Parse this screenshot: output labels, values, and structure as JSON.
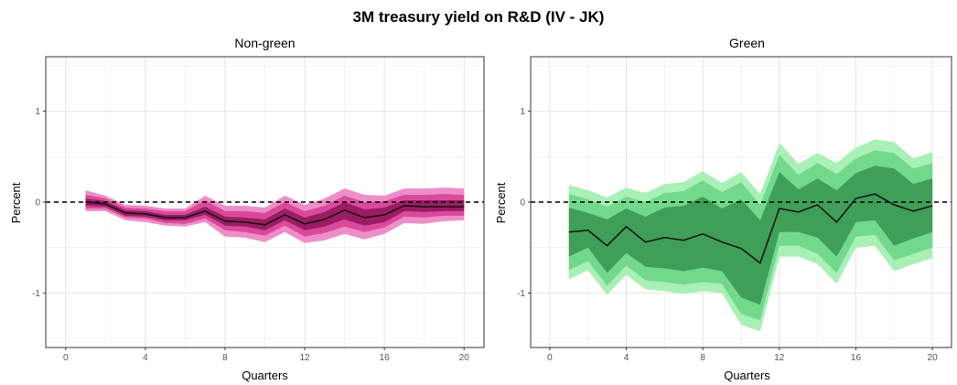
{
  "chart_data": {
    "type": "area",
    "title": "3M treasury yield on R&D (IV - JK)",
    "grid": true,
    "panels": [
      {
        "title": "Non-green",
        "xlabel": "Quarters",
        "ylabel": "Percent",
        "xlim": [
          -1,
          21
        ],
        "ylim": [
          -1.6,
          1.6
        ],
        "xticks": [
          0,
          4,
          8,
          12,
          16,
          20
        ],
        "yticks": [
          -1,
          0,
          1
        ],
        "colors": {
          "outer": "#ee8ec8",
          "mid": "#d94a9c",
          "inner": "#9b1c63",
          "line": "#111111"
        },
        "x": [
          1,
          2,
          3,
          4,
          5,
          6,
          7,
          8,
          9,
          10,
          11,
          12,
          13,
          14,
          15,
          16,
          17,
          18,
          19,
          20
        ],
        "median": [
          0.0,
          -0.02,
          -0.12,
          -0.13,
          -0.17,
          -0.17,
          -0.1,
          -0.21,
          -0.22,
          -0.25,
          -0.14,
          -0.24,
          -0.19,
          -0.09,
          -0.17,
          -0.14,
          -0.04,
          -0.05,
          -0.05,
          -0.05
        ],
        "bands": {
          "outer_lo": [
            -0.1,
            -0.1,
            -0.2,
            -0.22,
            -0.26,
            -0.27,
            -0.22,
            -0.38,
            -0.39,
            -0.44,
            -0.33,
            -0.45,
            -0.42,
            -0.35,
            -0.41,
            -0.35,
            -0.23,
            -0.24,
            -0.21,
            -0.2
          ],
          "outer_hi": [
            0.13,
            0.07,
            -0.03,
            -0.04,
            -0.07,
            -0.07,
            0.07,
            -0.04,
            -0.04,
            -0.06,
            0.07,
            -0.03,
            0.04,
            0.15,
            0.08,
            0.07,
            0.15,
            0.15,
            0.16,
            0.15
          ],
          "mid_lo": [
            -0.07,
            -0.07,
            -0.17,
            -0.18,
            -0.23,
            -0.24,
            -0.18,
            -0.31,
            -0.33,
            -0.37,
            -0.26,
            -0.38,
            -0.34,
            -0.27,
            -0.33,
            -0.28,
            -0.16,
            -0.17,
            -0.15,
            -0.15
          ],
          "mid_hi": [
            0.08,
            0.04,
            -0.06,
            -0.07,
            -0.1,
            -0.1,
            0.02,
            -0.1,
            -0.1,
            -0.12,
            0.0,
            -0.1,
            -0.04,
            0.07,
            0.0,
            0.01,
            0.08,
            0.08,
            0.09,
            0.08
          ],
          "inner_lo": [
            -0.04,
            -0.05,
            -0.15,
            -0.16,
            -0.2,
            -0.2,
            -0.14,
            -0.26,
            -0.27,
            -0.31,
            -0.2,
            -0.31,
            -0.27,
            -0.19,
            -0.26,
            -0.22,
            -0.1,
            -0.11,
            -0.1,
            -0.1
          ],
          "inner_hi": [
            0.04,
            0.01,
            -0.09,
            -0.1,
            -0.14,
            -0.14,
            -0.05,
            -0.16,
            -0.17,
            -0.19,
            -0.07,
            -0.17,
            -0.11,
            0.0,
            -0.08,
            -0.06,
            0.02,
            0.02,
            0.02,
            0.02
          ]
        }
      },
      {
        "title": "Green",
        "xlabel": "Quarters",
        "ylabel": "Percent",
        "xlim": [
          -1,
          21
        ],
        "ylim": [
          -1.6,
          1.6
        ],
        "xticks": [
          0,
          4,
          8,
          12,
          16,
          20
        ],
        "yticks": [
          -1,
          0,
          1
        ],
        "colors": {
          "outer": "#a8f0b6",
          "mid": "#72d98c",
          "inner": "#3f9e58",
          "line": "#111111"
        },
        "x": [
          1,
          2,
          3,
          4,
          5,
          6,
          7,
          8,
          9,
          10,
          11,
          12,
          13,
          14,
          15,
          16,
          17,
          18,
          19,
          20
        ],
        "median": [
          -0.33,
          -0.31,
          -0.48,
          -0.27,
          -0.44,
          -0.39,
          -0.42,
          -0.35,
          -0.44,
          -0.51,
          -0.67,
          -0.07,
          -0.11,
          -0.03,
          -0.22,
          0.04,
          0.09,
          -0.03,
          -0.1,
          -0.04
        ],
        "bands": {
          "outer_lo": [
            -0.85,
            -0.75,
            -1.02,
            -0.8,
            -0.96,
            -0.98,
            -1.01,
            -0.98,
            -1.0,
            -1.35,
            -1.42,
            -0.6,
            -0.6,
            -0.68,
            -0.9,
            -0.5,
            -0.48,
            -0.76,
            -0.68,
            -0.62
          ],
          "outer_hi": [
            0.19,
            0.13,
            0.05,
            0.16,
            0.1,
            0.2,
            0.22,
            0.34,
            0.21,
            0.33,
            0.09,
            0.65,
            0.42,
            0.54,
            0.43,
            0.6,
            0.69,
            0.66,
            0.48,
            0.55
          ],
          "mid_lo": [
            -0.75,
            -0.65,
            -0.92,
            -0.7,
            -0.86,
            -0.88,
            -0.91,
            -0.88,
            -0.9,
            -1.23,
            -1.3,
            -0.48,
            -0.48,
            -0.57,
            -0.78,
            -0.38,
            -0.36,
            -0.64,
            -0.57,
            -0.5
          ],
          "mid_hi": [
            0.09,
            0.03,
            -0.05,
            0.06,
            0.0,
            0.1,
            0.12,
            0.24,
            0.11,
            0.22,
            -0.03,
            0.52,
            0.3,
            0.43,
            0.31,
            0.48,
            0.57,
            0.54,
            0.37,
            0.43
          ],
          "inner_lo": [
            -0.6,
            -0.5,
            -0.78,
            -0.56,
            -0.71,
            -0.73,
            -0.76,
            -0.72,
            -0.76,
            -1.05,
            -1.13,
            -0.33,
            -0.33,
            -0.39,
            -0.6,
            -0.22,
            -0.2,
            -0.48,
            -0.4,
            -0.33
          ],
          "inner_hi": [
            -0.06,
            -0.12,
            -0.19,
            -0.07,
            -0.16,
            -0.06,
            -0.04,
            0.06,
            -0.07,
            0.03,
            -0.2,
            0.33,
            0.14,
            0.26,
            0.13,
            0.32,
            0.4,
            0.37,
            0.2,
            0.26
          ]
        }
      }
    ]
  }
}
